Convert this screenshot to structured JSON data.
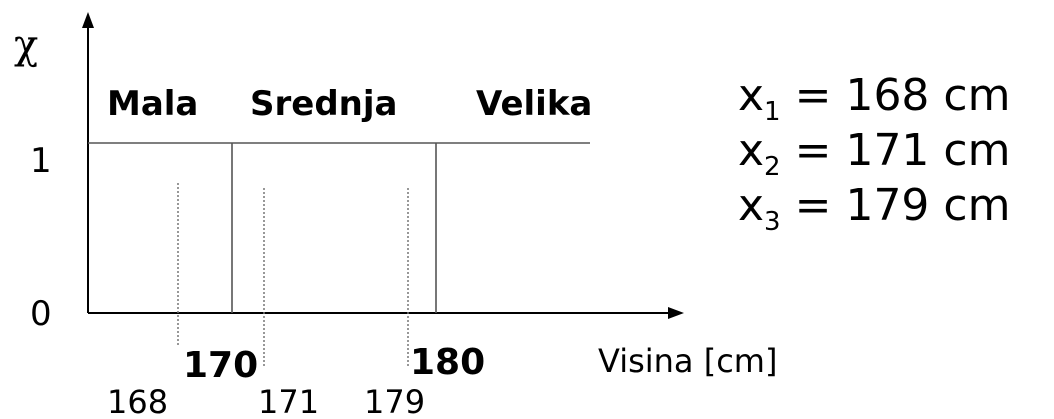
{
  "y_axis": {
    "label": "χ",
    "ticks": [
      "1",
      "0"
    ]
  },
  "sets": [
    "Mala",
    "Srednja",
    "Velika"
  ],
  "x_axis": {
    "label": "Visina [cm]",
    "boundaries": [
      "170",
      "180"
    ],
    "points": [
      "168",
      "171",
      "179"
    ]
  },
  "equations": [
    {
      "var": "x",
      "sub": "1",
      "rhs": "= 168 cm"
    },
    {
      "var": "x",
      "sub": "2",
      "rhs": "= 171 cm"
    },
    {
      "var": "x",
      "sub": "3",
      "rhs": "= 179 cm"
    }
  ]
}
